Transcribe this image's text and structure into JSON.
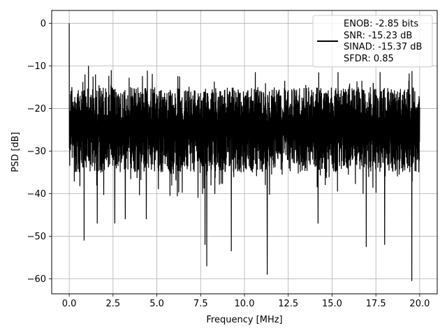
{
  "chart_data": {
    "type": "line",
    "title": "",
    "xlabel": "Frequency [MHz]",
    "ylabel": "PSD [dB]",
    "xlim": [
      -1.0,
      21.0
    ],
    "ylim": [
      -63.5,
      3.0
    ],
    "xticks": [
      0.0,
      2.5,
      5.0,
      7.5,
      10.0,
      12.5,
      15.0,
      17.5,
      20.0
    ],
    "xtick_labels": [
      "0.0",
      "2.5",
      "5.0",
      "7.5",
      "10.0",
      "12.5",
      "15.0",
      "17.5",
      "20.0"
    ],
    "yticks": [
      0,
      -10,
      -20,
      -30,
      -40,
      -50,
      -60
    ],
    "ytick_labels": [
      "0",
      "−10",
      "−20",
      "−30",
      "−40",
      "−50",
      "−60"
    ],
    "grid": true,
    "legend_position": "top-right",
    "legend_lines": [
      "ENOB: -2.85 bits",
      "SNR: -15.23 dB",
      "SINAD: -15.37 dB",
      "SFDR: 0.85"
    ],
    "series": [
      {
        "color": "#000000",
        "line_style": "solid",
        "x_range": [
          0.0,
          20.0
        ],
        "approx_points": 2000,
        "envelope_upper_db": -15,
        "envelope_lower_db": -35,
        "peak": {
          "x": 0.0,
          "y": 0.0
        },
        "low_near_dc": [
          {
            "x": 0.15,
            "y": -15
          },
          {
            "x": 0.3,
            "y": -28
          }
        ],
        "notable_minima": [
          {
            "x": 0.85,
            "y": -51
          },
          {
            "x": 1.6,
            "y": -47
          },
          {
            "x": 2.6,
            "y": -47
          },
          {
            "x": 3.2,
            "y": -46
          },
          {
            "x": 4.4,
            "y": -46
          },
          {
            "x": 7.75,
            "y": -52
          },
          {
            "x": 7.85,
            "y": -57
          },
          {
            "x": 9.25,
            "y": -53.5
          },
          {
            "x": 11.3,
            "y": -59
          },
          {
            "x": 14.2,
            "y": -47
          },
          {
            "x": 16.95,
            "y": -52.5
          },
          {
            "x": 18.0,
            "y": -52
          },
          {
            "x": 19.55,
            "y": -60.5
          }
        ],
        "notable_maxima": [
          {
            "x": 0.9,
            "y": -12
          },
          {
            "x": 1.1,
            "y": -10
          },
          {
            "x": 1.5,
            "y": -12
          },
          {
            "x": 2.4,
            "y": -11
          },
          {
            "x": 12.3,
            "y": -13.5
          },
          {
            "x": 13.5,
            "y": -14.5
          },
          {
            "x": 16.7,
            "y": -13.5
          },
          {
            "x": 17.35,
            "y": -14
          },
          {
            "x": 19.9,
            "y": -19
          }
        ]
      }
    ]
  }
}
